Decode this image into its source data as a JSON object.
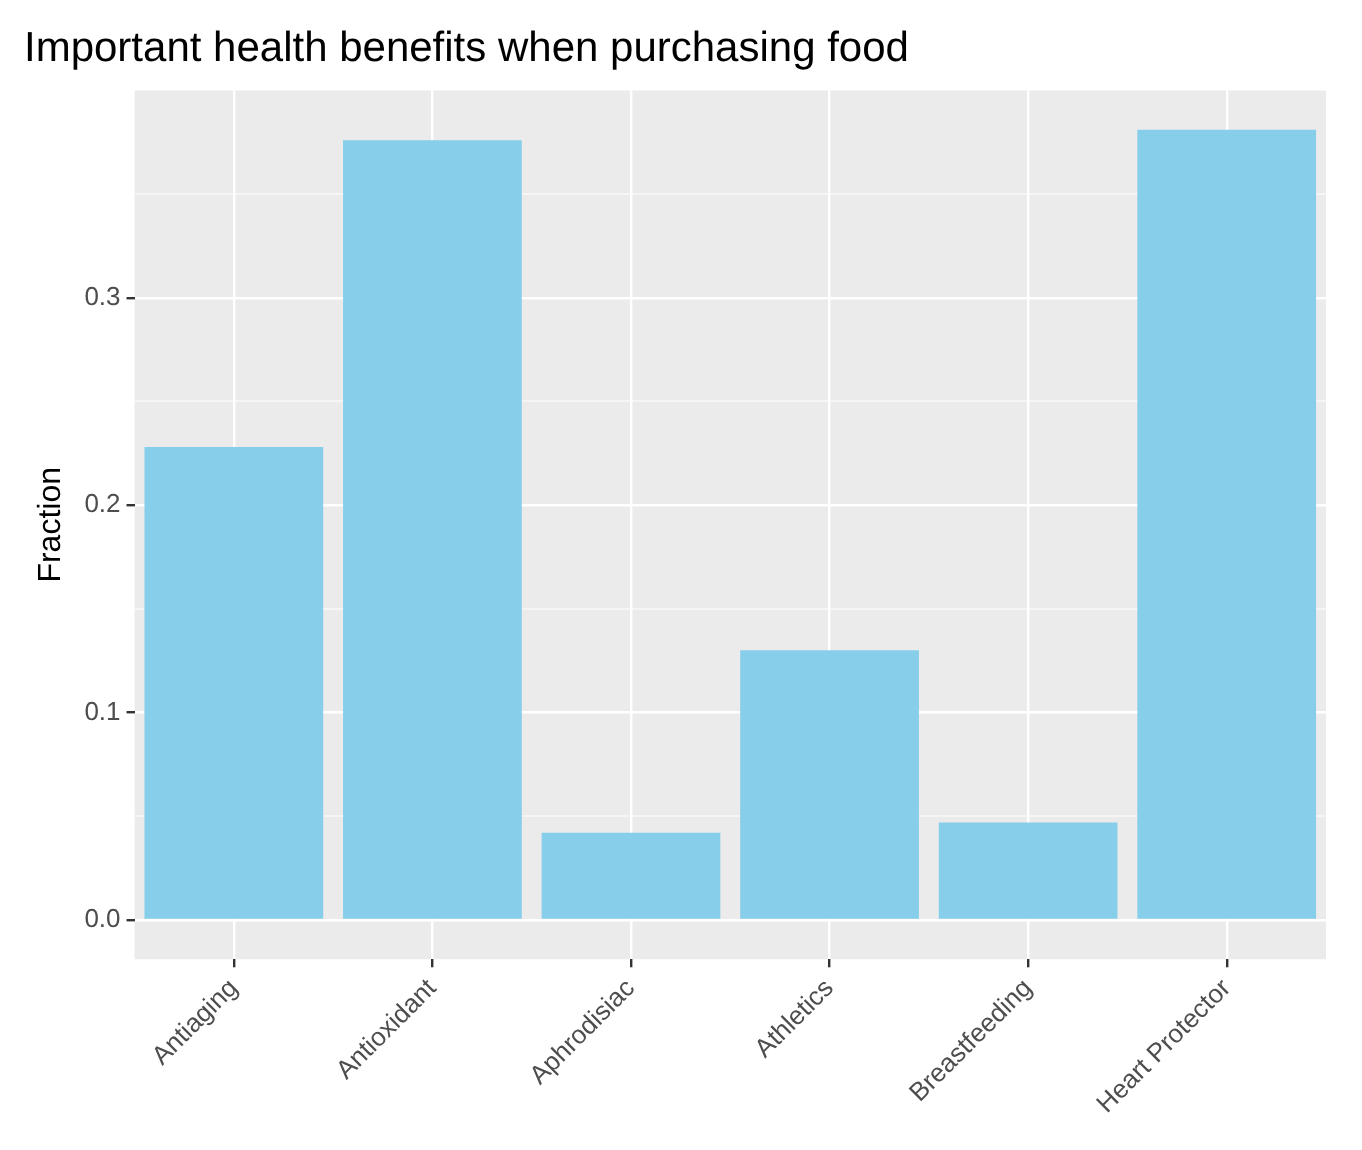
{
  "chart_data": {
    "type": "bar",
    "title": "Important health benefits when purchasing food",
    "ylabel": "Fraction",
    "categories": [
      "Antiaging",
      "Antioxidant",
      "Aphrodisiac",
      "Athletics",
      "Breastfeeding",
      "Heart Protector"
    ],
    "values": [
      0.228,
      0.376,
      0.042,
      0.13,
      0.047,
      0.381
    ],
    "color": "#87ceeb",
    "ylim": [
      -0.019,
      0.4
    ],
    "yticks": [
      {
        "value": 0,
        "label": "0.0"
      },
      {
        "value": 0.05,
        "label": null
      },
      {
        "value": 0.1,
        "label": "0.1"
      },
      {
        "value": 0.15,
        "label": null
      },
      {
        "value": 0.2,
        "label": "0.2"
      },
      {
        "value": 0.25,
        "label": null
      },
      {
        "value": 0.3,
        "label": "0.3"
      },
      {
        "value": 0.35,
        "label": null
      }
    ],
    "grid": true
  }
}
